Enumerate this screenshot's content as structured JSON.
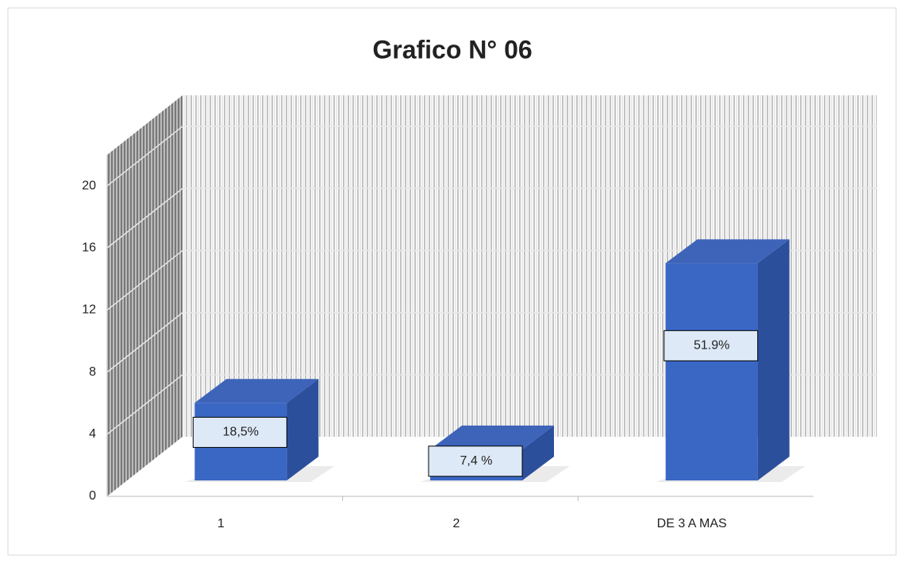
{
  "chart_data": {
    "type": "bar3d",
    "title": "Grafico N° 06",
    "categories": [
      "1",
      "2",
      "DE 3 A MAS"
    ],
    "values": [
      5,
      2,
      14
    ],
    "value_labels": [
      "18,5%",
      "7,4 %",
      "51.9%"
    ],
    "color": "#3a67c4",
    "ylim": [
      0,
      22
    ],
    "yticks": [
      0,
      4,
      8,
      12,
      16,
      20
    ],
    "grid": true
  }
}
